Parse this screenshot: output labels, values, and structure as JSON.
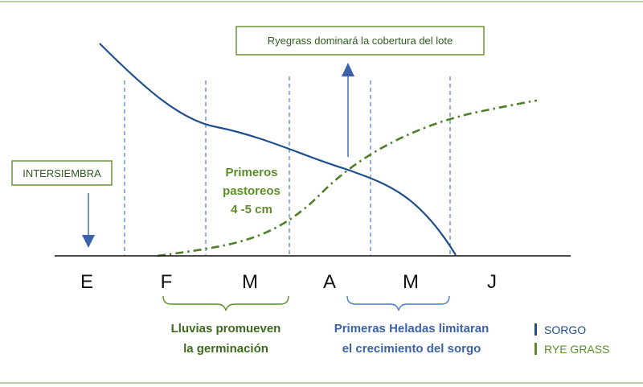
{
  "months": [
    "E",
    "F",
    "M",
    "A",
    "M",
    "J"
  ],
  "callouts": {
    "ryegrass_dominance": "Ryegrass dominará la cobertura del lote",
    "intersiembra": "INTERSIEMBRA"
  },
  "annotations": {
    "primeros_pastoreos": [
      "Primeros",
      "pastoreos",
      "4 -5 cm"
    ],
    "lluvias": [
      "Lluvias promueven",
      "la germinación"
    ],
    "heladas": [
      "Primeras Heladas limitaran",
      "el crecimiento del sorgo"
    ]
  },
  "legend": [
    {
      "label": "SORGO",
      "color": "#1f4e8c"
    },
    {
      "label": "RYE GRASS",
      "color": "#5a8f28"
    }
  ],
  "colors": {
    "sorgo": "#1f4e8c",
    "ryegrass": "#4f7f2a",
    "dashed_divider": "#4a7cc7",
    "brace_green": "#5a8f28",
    "brace_blue": "#4a7cc7",
    "rule": "#9fbf8a"
  }
}
